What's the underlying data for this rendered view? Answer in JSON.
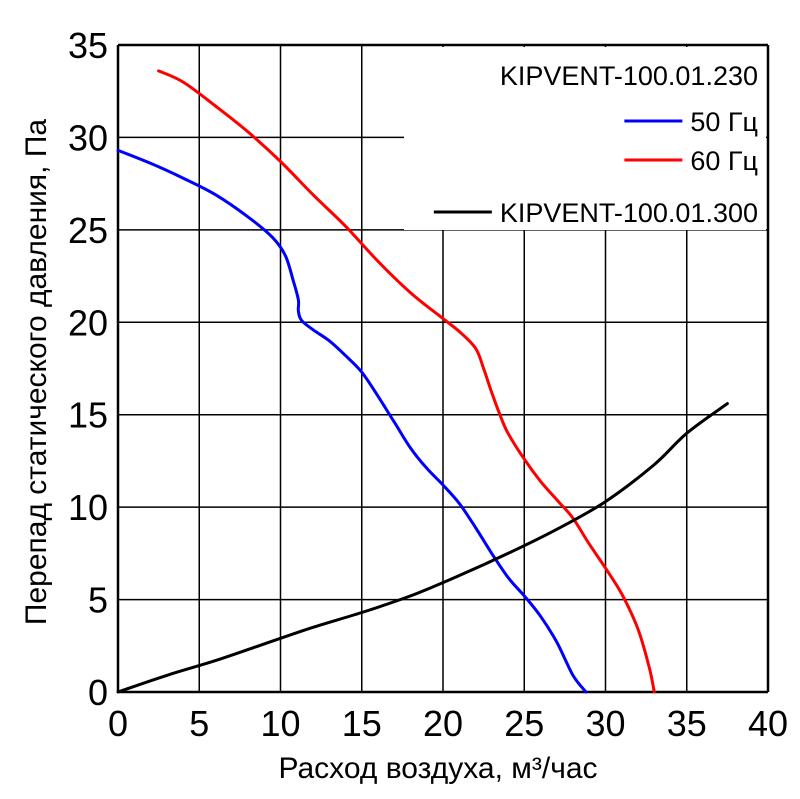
{
  "chart_data": {
    "type": "line",
    "title": "",
    "xlabel": "Расход воздуха, м³/час",
    "ylabel": "Перепад статического давления, Па",
    "xlim": [
      0,
      40
    ],
    "ylim": [
      0,
      35
    ],
    "x_ticks": [
      "0",
      "5",
      "10",
      "15",
      "20",
      "25",
      "30",
      "35",
      "40"
    ],
    "y_ticks": [
      "0",
      "5",
      "10",
      "15",
      "20",
      "25",
      "30",
      "35"
    ],
    "grid": true,
    "legend_position": "top-right",
    "legend_entries": [
      "KIPVENT-100.01.230",
      "50 Гц",
      "60 Гц",
      "KIPVENT-100.01.300"
    ],
    "series": [
      {
        "name": "50 Гц",
        "color": "#0000ff",
        "x": [
          0,
          2,
          4,
          6,
          8,
          9.5,
          10.3,
          10.8,
          11.1,
          11.1,
          11.3,
          12,
          13,
          14,
          15,
          16,
          17,
          18,
          19,
          20,
          21,
          22,
          23,
          24,
          25,
          26,
          27,
          28,
          28.8
        ],
        "y": [
          29.3,
          28.6,
          27.8,
          26.9,
          25.7,
          24.6,
          23.6,
          22.2,
          21.2,
          20.6,
          20.1,
          19.6,
          19.0,
          18.2,
          17.3,
          16.0,
          14.6,
          13.2,
          12.1,
          11.2,
          10.2,
          8.9,
          7.5,
          6.2,
          5.2,
          4.1,
          2.7,
          0.9,
          0
        ]
      },
      {
        "name": "60 Гц",
        "color": "#ff0000",
        "x": [
          2.5,
          4,
          6,
          8,
          10,
          12,
          14,
          16,
          18,
          20,
          21,
          22,
          22.5,
          23,
          23.5,
          24,
          25,
          26,
          27,
          28,
          29,
          30,
          31,
          32,
          32.7,
          33
        ],
        "y": [
          33.6,
          33.0,
          31.7,
          30.3,
          28.7,
          26.9,
          25.2,
          23.3,
          21.6,
          20.2,
          19.5,
          18.6,
          17.5,
          16.2,
          15.0,
          14.0,
          12.6,
          11.4,
          10.4,
          9.4,
          8.0,
          6.7,
          5.3,
          3.4,
          1.3,
          0
        ]
      },
      {
        "name": "KIPVENT-100.01.300",
        "color": "#000000",
        "x": [
          0,
          3,
          6,
          9,
          12,
          15,
          18,
          21,
          24,
          27,
          30,
          33,
          35,
          37.5
        ],
        "y": [
          0,
          0.9,
          1.7,
          2.6,
          3.5,
          4.3,
          5.2,
          6.3,
          7.5,
          8.8,
          10.3,
          12.3,
          14.0,
          15.6
        ]
      }
    ]
  }
}
